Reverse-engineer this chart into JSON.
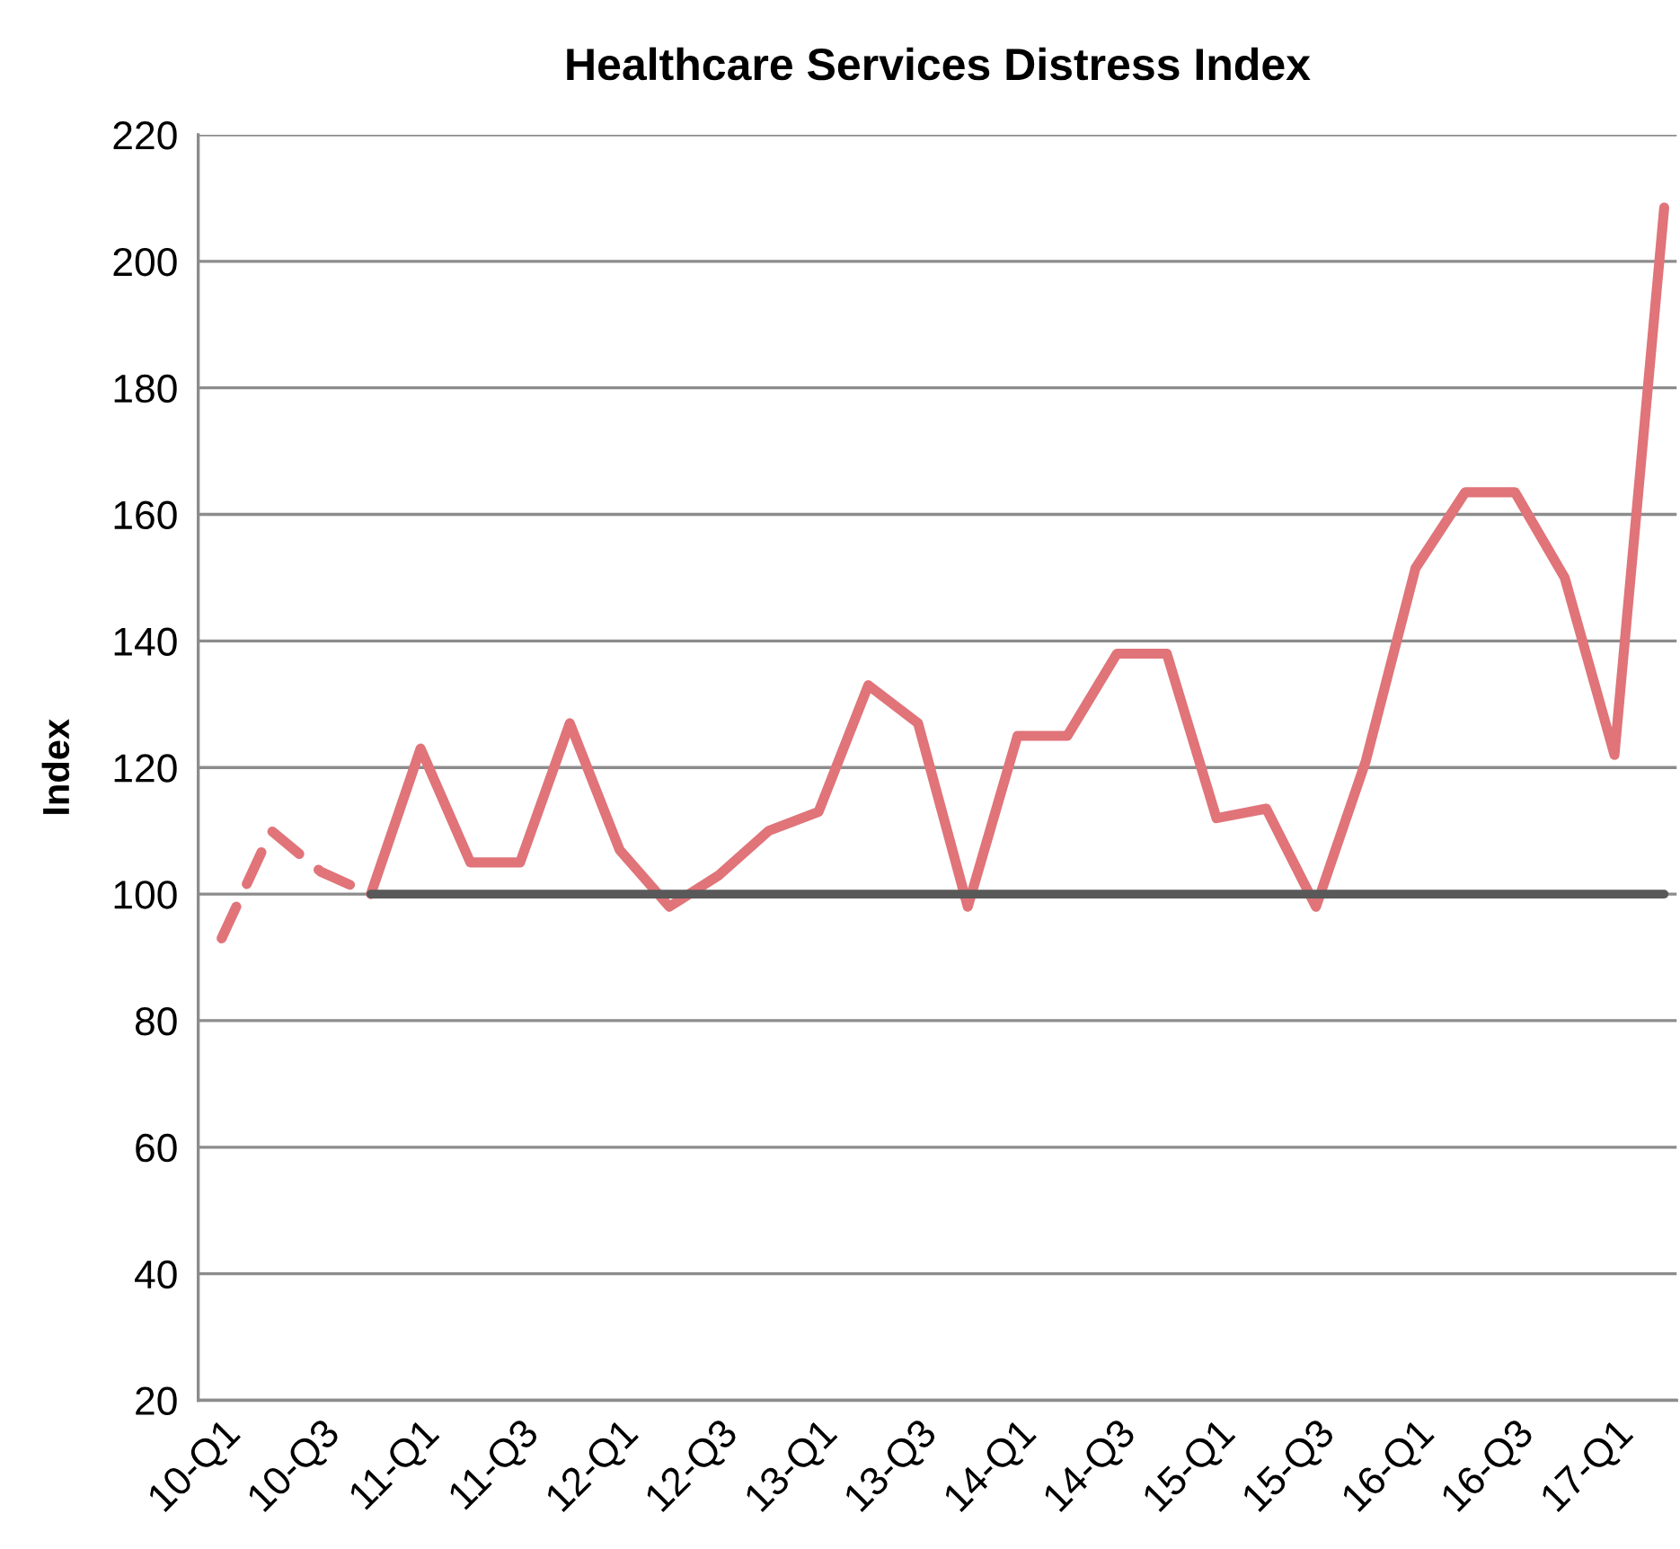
{
  "chart_data": {
    "type": "line",
    "title": "Healthcare Services Distress Index",
    "ylabel": "Index",
    "categories": [
      "10-Q1",
      null,
      "10-Q3",
      null,
      "11-Q1",
      null,
      "11-Q3",
      null,
      "12-Q1",
      null,
      "12-Q3",
      null,
      "13-Q1",
      null,
      "13-Q3",
      null,
      "14-Q1",
      null,
      "14-Q3",
      null,
      "15-Q1",
      null,
      "15-Q3",
      null,
      "16-Q1",
      null,
      "16-Q3",
      null,
      "17-Q1",
      null
    ],
    "series": [
      {
        "color": "#e07479",
        "line_style": "dashed",
        "values": [
          93,
          110,
          103.5,
          100,
          null,
          null,
          null,
          null,
          null,
          null,
          null,
          null,
          null,
          null,
          null,
          null,
          null,
          null,
          null,
          null,
          null,
          null,
          null,
          null,
          null,
          null,
          null,
          null,
          null,
          null
        ]
      },
      {
        "color": "#e07479",
        "line_style": "solid",
        "values": [
          null,
          null,
          null,
          100,
          123,
          105,
          105,
          127,
          107,
          98,
          103,
          110,
          113,
          133,
          127,
          98,
          125,
          125,
          138,
          138,
          112,
          113.5,
          98,
          121,
          151.5,
          163.5,
          163.5,
          150,
          122,
          208.5
        ]
      },
      {
        "color": "#595959",
        "line_style": "solid",
        "values": [
          null,
          null,
          null,
          100,
          100,
          100,
          100,
          100,
          100,
          100,
          100,
          100,
          100,
          100,
          100,
          100,
          100,
          100,
          100,
          100,
          100,
          100,
          100,
          100,
          100,
          100,
          100,
          100,
          100,
          100
        ]
      }
    ],
    "ylim": [
      20,
      220
    ],
    "yticks": [
      20,
      40,
      60,
      80,
      100,
      120,
      140,
      160,
      180,
      200,
      220
    ],
    "grid": "y",
    "legend": false,
    "marker": "none"
  }
}
